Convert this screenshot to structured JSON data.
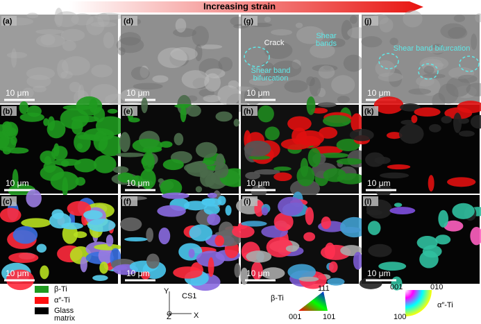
{
  "header": {
    "title": "Increasing strain"
  },
  "panels": [
    {
      "label": "(a)",
      "scale_bar": "10 μm"
    },
    {
      "label": "(d)",
      "scale_bar": "10 μm"
    },
    {
      "label": "(g)",
      "scale_bar": "10 μm",
      "annotations": [
        {
          "lines": [
            "Crack"
          ]
        },
        {
          "lines": [
            "Shear",
            "bands"
          ]
        },
        {
          "lines": [
            "Shear band",
            "bifurcation"
          ]
        }
      ]
    },
    {
      "label": "(j)",
      "scale_bar": "10 μm",
      "annotations": [
        {
          "lines": [
            "Shear band bifurcation"
          ]
        }
      ]
    },
    {
      "label": "(b)",
      "scale_bar": "10 μm"
    },
    {
      "label": "(e)",
      "scale_bar": "10 μm"
    },
    {
      "label": "(h)",
      "scale_bar": "10 μm"
    },
    {
      "label": "(k)",
      "scale_bar": "10 μm"
    },
    {
      "label": "(c)",
      "scale_bar": "10 μm"
    },
    {
      "label": "(f)",
      "scale_bar": "10 μm"
    },
    {
      "label": "(i)",
      "scale_bar": "10 μm"
    },
    {
      "label": "(l)",
      "scale_bar": "10 μm"
    }
  ],
  "legend": [
    {
      "label": "β-Ti"
    },
    {
      "label": "α″-Ti"
    },
    {
      "lines": [
        "Glass",
        "matrix"
      ]
    }
  ],
  "coordinate_system": {
    "y": "Y",
    "name": "CS1",
    "z": "Z",
    "x": "X"
  },
  "ipf_beta": {
    "title": "β-Ti",
    "top": "111",
    "left": "001",
    "right": "101"
  },
  "ipf_alpha": {
    "title": "α″-Ti",
    "top_left": "001",
    "top_right": "010",
    "bottom": "100"
  }
}
